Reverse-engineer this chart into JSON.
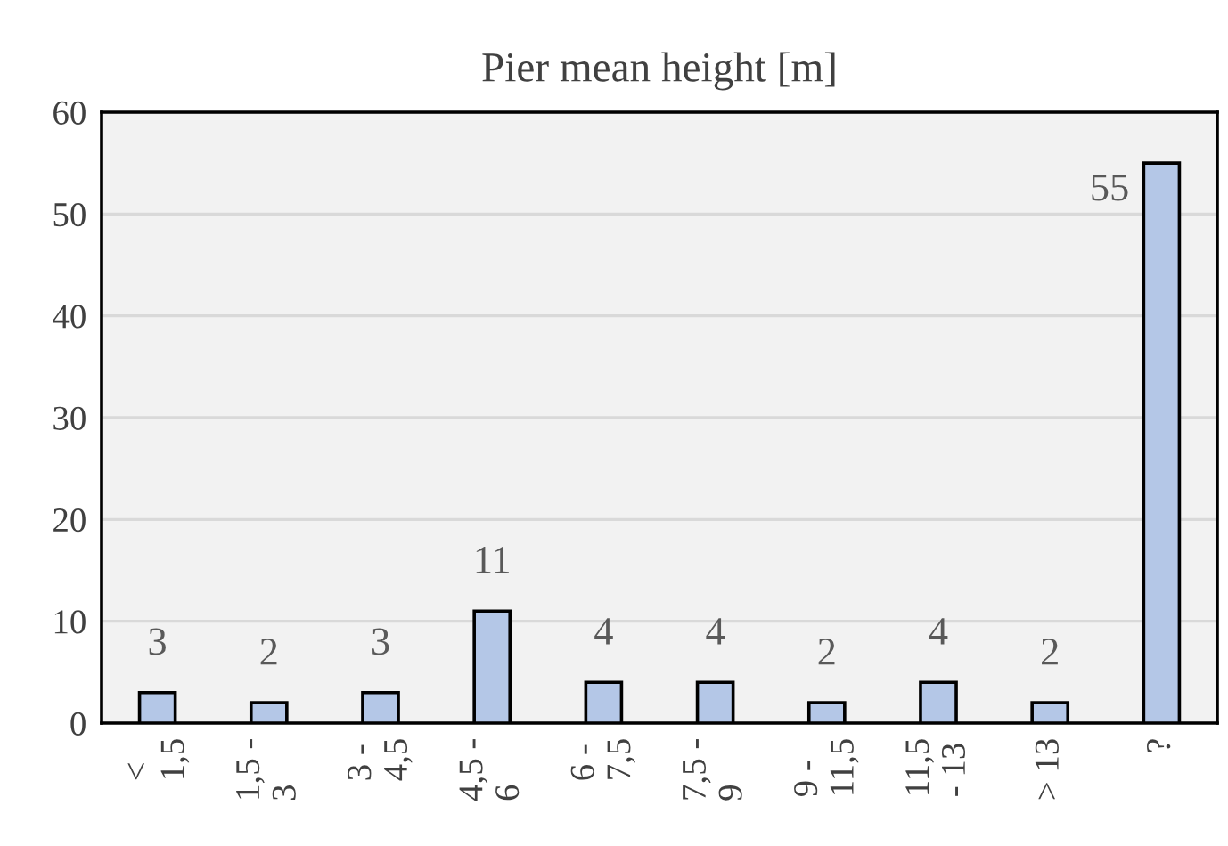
{
  "chart_data": {
    "type": "bar",
    "title": "Pier mean height [m]",
    "categories": [
      "<\n1,5",
      "1,5 -\n3",
      "3 -\n4,5",
      "4,5 -\n6",
      "6 -\n7,5",
      "7,5 -\n9",
      "9 -\n11,5",
      "11,5\n- 13",
      "> 13",
      "?"
    ],
    "values": [
      3,
      2,
      3,
      11,
      4,
      4,
      2,
      4,
      2,
      55
    ],
    "color": "#b4c7e7",
    "ylim": [
      0,
      60
    ],
    "yticks": [
      0,
      10,
      20,
      30,
      40,
      50,
      60
    ],
    "grid": "y",
    "data_labels": true
  }
}
